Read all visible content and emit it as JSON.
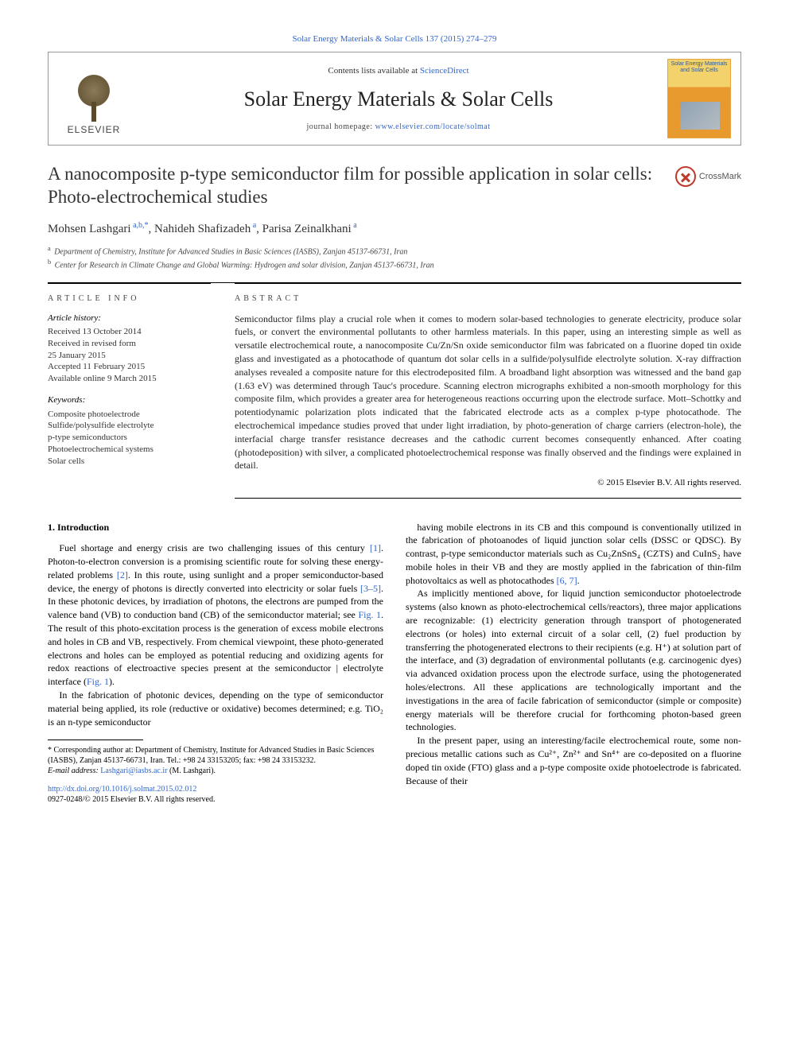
{
  "citation": "Solar Energy Materials & Solar Cells 137 (2015) 274–279",
  "header": {
    "contents_prefix": "Contents lists available at ",
    "contents_link": "ScienceDirect",
    "journal": "Solar Energy Materials & Solar Cells",
    "homepage_prefix": "journal homepage: ",
    "homepage_url": "www.elsevier.com/locate/solmat",
    "publisher_logo_text": "ELSEVIER",
    "cover_title": "Solar Energy Materials and Solar Cells"
  },
  "crossmark_label": "CrossMark",
  "title": "A nanocomposite p-type semiconductor film for possible application in solar cells: Photo-electrochemical studies",
  "authors_html": "Mohsen Lashgari",
  "authors": [
    {
      "name": "Mohsen Lashgari",
      "marks": "a,b,*"
    },
    {
      "name": "Nahideh Shafizadeh",
      "marks": "a"
    },
    {
      "name": "Parisa Zeinalkhani",
      "marks": "a"
    }
  ],
  "affiliations": [
    {
      "mark": "a",
      "text": "Department of Chemistry, Institute for Advanced Studies in Basic Sciences (IASBS), Zanjan 45137-66731, Iran"
    },
    {
      "mark": "b",
      "text": "Center for Research in Climate Change and Global Warming: Hydrogen and solar division, Zanjan 45137-66731, Iran"
    }
  ],
  "article_info_label": "ARTICLE INFO",
  "abstract_label": "ABSTRACT",
  "history_label": "Article history:",
  "history": [
    "Received 13 October 2014",
    "Received in revised form",
    "25 January 2015",
    "Accepted 11 February 2015",
    "Available online 9 March 2015"
  ],
  "keywords_label": "Keywords:",
  "keywords": [
    "Composite photoelectrode",
    "Sulfide/polysulfide electrolyte",
    "p-type semiconductors",
    "Photoelectrochemical systems",
    "Solar cells"
  ],
  "abstract": "Semiconductor films play a crucial role when it comes to modern solar-based technologies to generate electricity, produce solar fuels, or convert the environmental pollutants to other harmless materials. In this paper, using an interesting simple as well as versatile electrochemical route, a nanocomposite Cu/Zn/Sn oxide semiconductor film was fabricated on a fluorine doped tin oxide glass and investigated as a photocathode of quantum dot solar cells in a sulfide/polysulfide electrolyte solution. X-ray diffraction analyses revealed a composite nature for this electrodeposited film. A broadband light absorption was witnessed and the band gap (1.63 eV) was determined through Tauc's procedure. Scanning electron micrographs exhibited a non-smooth morphology for this composite film, which provides a greater area for heterogeneous reactions occurring upon the electrode surface. Mott–Schottky and potentiodynamic polarization plots indicated that the fabricated electrode acts as a complex p-type photocathode. The electrochemical impedance studies proved that under light irradiation, by photo-generation of charge carriers (electron-hole), the interfacial charge transfer resistance decreases and the cathodic current becomes consequently enhanced. After coating (photodeposition) with silver, a complicated photoelectrochemical response was finally observed and the findings were explained in detail.",
  "copyright": "© 2015 Elsevier B.V. All rights reserved.",
  "intro_heading": "1.  Introduction",
  "body": {
    "p1a": "Fuel shortage and energy crisis are two challenging issues of this century ",
    "r1": "[1]",
    "p1b": ". Photon-to-electron conversion is a promising scientific route for solving these energy-related problems ",
    "r2": "[2]",
    "p1c": ". In this route, using sunlight and a proper semiconductor-based device, the energy of photons is directly converted into electricity or solar fuels ",
    "r3": "[3–5]",
    "p1d": ". In these photonic devices, by irradiation of photons, the electrons are pumped from the valence band (VB) to conduction band (CB) of the semiconductor material; see ",
    "f1": "Fig. 1",
    "p1e": ". The result of this photo-excitation process is the generation of excess mobile electrons and holes in CB and VB, respectively. From chemical viewpoint, these photo-generated electrons and holes can be employed as potential reducing and oxidizing agents for redox reactions of electroactive species present at the semiconductor | electrolyte interface (",
    "f1b": "Fig. 1",
    "p1f": ").",
    "p2": "In the fabrication of photonic devices, depending on the type of semiconductor material being applied, its role (reductive or oxidative) becomes determined; e.g. TiO₂ is an n-type semiconductor",
    "p3a": "having mobile electrons in its CB and this compound is conventionally utilized in the fabrication of photoanodes of liquid junction solar cells (DSSC or QDSC). By contrast, p-type semiconductor materials such as Cu₂ZnSnS₄ (CZTS) and CuInS₂ have mobile holes in their VB and they are mostly applied in the fabrication of thin-film photovoltaics as well as photocathodes ",
    "r4": "[6, 7]",
    "p3b": ".",
    "p4": "As implicitly mentioned above, for liquid junction semiconductor photoelectrode systems (also known as photo-electrochemical cells/reactors), three major applications are recognizable: (1) electricity generation through transport of photogenerated electrons (or holes) into external circuit of a solar cell, (2) fuel production by transferring the photogenerated electrons to their recipients (e.g. H⁺) at solution part of the interface, and (3) degradation of environmental pollutants (e.g. carcinogenic dyes) via advanced oxidation process upon the electrode surface, using the photogenerated holes/electrons. All these applications are technologically important and the investigations in the area of facile fabrication of semiconductor (simple or composite) energy materials will be therefore crucial for forthcoming photon-based green technologies.",
    "p5": "In the present paper, using an interesting/facile electrochemical route, some non-precious metallic cations such as Cu²⁺, Zn²⁺ and Sn⁴⁺ are co-deposited on a fluorine doped tin oxide (FTO) glass and a p-type composite oxide photoelectrode is fabricated. Because of their"
  },
  "footnote": {
    "corr": "* Corresponding author at: Department of Chemistry, Institute for Advanced Studies in Basic Sciences (IASBS), Zanjan 45137-66731, Iran. Tel.: +98 24 33153205; fax: +98 24 33153232.",
    "email_label": "E-mail address: ",
    "email": "Lashgari@iasbs.ac.ir",
    "email_suffix": " (M. Lashgari)."
  },
  "doi": {
    "url": "http://dx.doi.org/10.1016/j.solmat.2015.02.012",
    "issn_line": "0927-0248/© 2015 Elsevier B.V. All rights reserved."
  },
  "colors": {
    "link": "#3366cc",
    "text": "#222222",
    "rule": "#000000",
    "elsevier_orange": "#e7a33e",
    "crossmark_red": "#c0392b"
  }
}
